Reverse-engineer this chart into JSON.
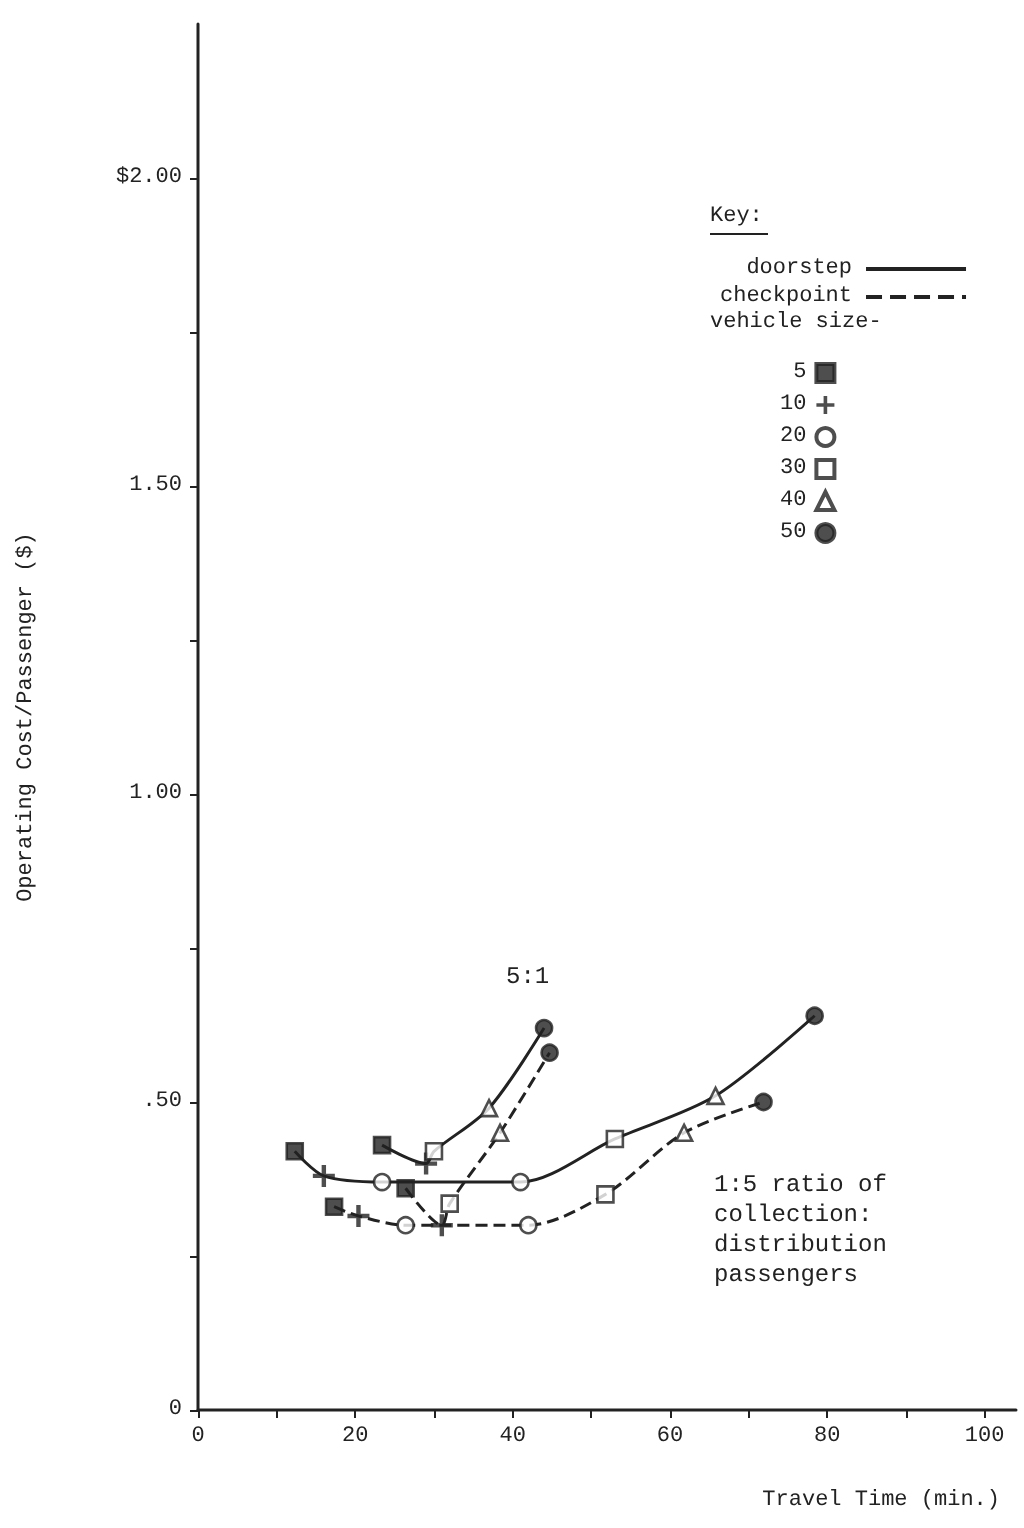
{
  "chart_data": {
    "type": "line",
    "xlabel": "Travel Time (min.)",
    "ylabel": "Operating Cost/Passenger ($)",
    "legend_title": "Key:",
    "legend": "top right",
    "grid": false,
    "marker": "none",
    "xlim": [
      0,
      104
    ],
    "xticks": [
      0,
      {
        "value": 10,
        "label": null
      },
      20,
      {
        "value": 30,
        "label": null
      },
      40,
      {
        "value": 50,
        "label": null
      },
      60,
      {
        "value": 70,
        "label": null
      },
      80,
      {
        "value": 90,
        "label": null
      },
      100
    ],
    "ylim": [
      0,
      2.25
    ],
    "yticks": [
      {
        "value": 0,
        "label": "0"
      },
      {
        "value": 0.25,
        "label": null
      },
      {
        "value": 0.5,
        "label": ".50"
      },
      {
        "value": 0.75,
        "label": null
      },
      {
        "value": 1,
        "label": "1.00"
      },
      {
        "value": 1.25,
        "label": null
      },
      {
        "value": 1.5,
        "label": "1.50"
      },
      {
        "value": 1.75,
        "label": null
      },
      {
        "value": 2,
        "label": "$2.00"
      }
    ],
    "annotations": [
      "vehicle size-",
      "5:1",
      "1:5 ratio of\ncollection:\ndistribution\npassengers"
    ],
    "series": [
      {
        "name": "doorstep",
        "line_style": "solid",
        "color": "#222222",
        "x": [
          23.4,
          29,
          30,
          37,
          44
        ],
        "values": [
          0.43,
          0.4,
          0.42,
          0.49,
          0.62
        ]
      },
      {
        "name": "checkpoint",
        "line_style": "dashed",
        "color": "#222222",
        "x": [
          26.4,
          31,
          32,
          38.4,
          44.7
        ],
        "values": [
          0.36,
          0.3,
          0.335,
          0.45,
          0.58
        ]
      },
      {
        "line_style": "solid",
        "color": "#222222",
        "x": [
          12.3,
          16,
          23.4,
          41,
          53,
          65.8,
          78.4
        ],
        "values": [
          0.42,
          0.38,
          0.37,
          0.37,
          0.44,
          0.51,
          0.64
        ]
      },
      {
        "line_style": "dashed",
        "color": "#222222",
        "x": [
          17.3,
          20.4,
          26.4,
          42,
          51.8,
          61.8,
          71.9
        ],
        "values": [
          0.33,
          0.315,
          0.3,
          0.3,
          0.35,
          0.45,
          0.5
        ]
      },
      {
        "name": "5",
        "type": "scatter",
        "marker": "square",
        "color": "#222222",
        "x": [
          12.3,
          23.4,
          26.4,
          17.3
        ],
        "values": [
          0.42,
          0.43,
          0.36,
          0.33
        ]
      },
      {
        "name": "10",
        "type": "scatter",
        "marker": "cross",
        "color": "#222222",
        "x": [
          16,
          20.4,
          29,
          31
        ],
        "values": [
          0.38,
          0.315,
          0.4,
          0.3
        ]
      },
      {
        "name": "20",
        "type": "scatter",
        "marker": "circle",
        "color": "#ffffff",
        "x": [
          23.4,
          26.4,
          41,
          42
        ],
        "values": [
          0.37,
          0.3,
          0.37,
          0.3
        ]
      },
      {
        "name": "30",
        "type": "scatter",
        "marker": "square",
        "color": "#ffffff",
        "x": [
          30,
          32,
          53,
          51.8
        ],
        "values": [
          0.42,
          0.335,
          0.44,
          0.35
        ]
      },
      {
        "name": "40",
        "type": "scatter",
        "marker": "triangle",
        "color": "#ffffff",
        "x": [
          37,
          38.4,
          65.8,
          61.8
        ],
        "values": [
          0.49,
          0.45,
          0.51,
          0.45
        ]
      },
      {
        "name": "50",
        "type": "scatter",
        "marker": "circle",
        "color": "#222222",
        "x": [
          44,
          44.7,
          78.4,
          71.9
        ],
        "values": [
          0.62,
          0.58,
          0.64,
          0.5
        ]
      }
    ]
  }
}
